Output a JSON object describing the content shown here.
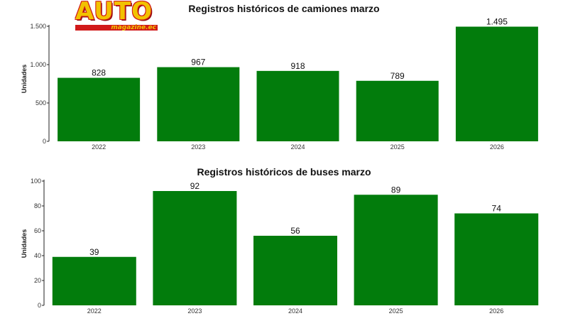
{
  "logo": {
    "word": "AUTO",
    "sub": "magazine.ec"
  },
  "chart_data": [
    {
      "type": "bar",
      "title": "Registros históricos de camiones marzo",
      "ylabel": "Unidades",
      "categories": [
        "2022",
        "2023",
        "2024",
        "2025",
        "2026"
      ],
      "values": [
        828,
        967,
        918,
        789,
        1495
      ],
      "value_labels": [
        "828",
        "967",
        "918",
        "789",
        "1.495"
      ],
      "yticks": [
        0,
        500,
        1000,
        1500
      ],
      "ytick_labels": [
        "0",
        "500",
        "1.000",
        "1.500"
      ],
      "ylim": [
        0,
        1500
      ],
      "bar_color": "#027c0c",
      "grid": false
    },
    {
      "type": "bar",
      "title": "Registros históricos de buses marzo",
      "ylabel": "Unidades",
      "categories": [
        "2022",
        "2023",
        "2024",
        "2025",
        "2026"
      ],
      "values": [
        39,
        92,
        56,
        89,
        74
      ],
      "value_labels": [
        "39",
        "92",
        "56",
        "89",
        "74"
      ],
      "yticks": [
        0,
        20,
        40,
        60,
        80,
        100
      ],
      "ytick_labels": [
        "0",
        "20",
        "40",
        "60",
        "80",
        "100"
      ],
      "ylim": [
        0,
        100
      ],
      "bar_color": "#027c0c",
      "grid": false
    }
  ]
}
